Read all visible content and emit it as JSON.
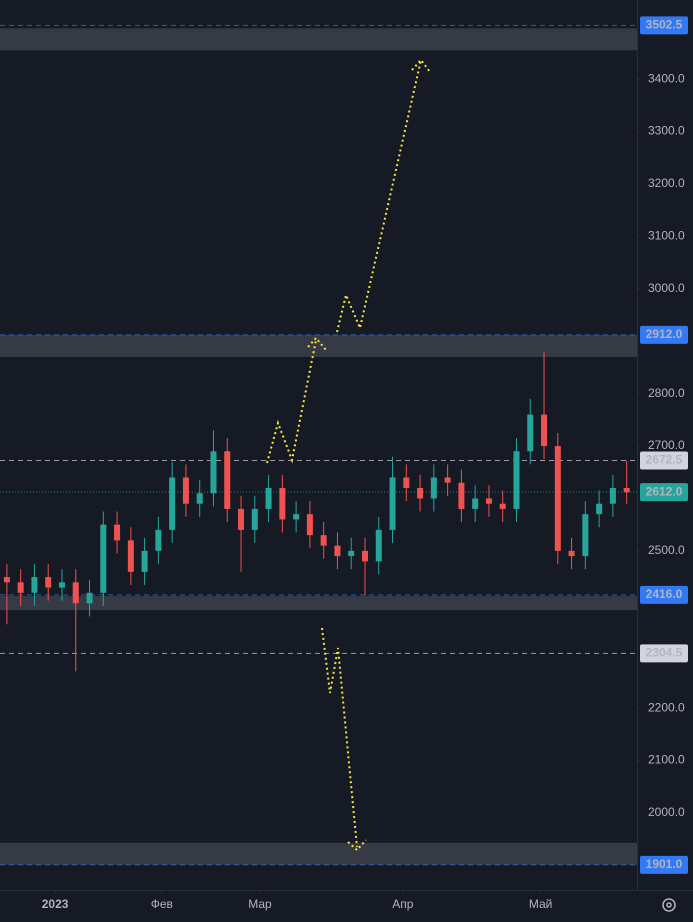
{
  "chart_data": {
    "type": "candlestick",
    "x": [
      0,
      4,
      8,
      12,
      16,
      20,
      24,
      28,
      32,
      36,
      40,
      44,
      48,
      52,
      56,
      60,
      64,
      68,
      72,
      76,
      80,
      84,
      88,
      92,
      96,
      100,
      104,
      108,
      112,
      116,
      120,
      124,
      128,
      132,
      136,
      140,
      144,
      148,
      152,
      156,
      160,
      164,
      168,
      172,
      176,
      180
    ],
    "open": [
      2450,
      2440,
      2420,
      2450,
      2430,
      2440,
      2400,
      2420,
      2550,
      2520,
      2460,
      2500,
      2540,
      2640,
      2590,
      2610,
      2690,
      2580,
      2540,
      2580,
      2620,
      2560,
      2570,
      2530,
      2510,
      2490,
      2500,
      2480,
      2540,
      2640,
      2620,
      2600,
      2640,
      2630,
      2580,
      2600,
      2590,
      2580,
      2690,
      2760,
      2700,
      2500,
      2490,
      2570,
      2590,
      2620
    ],
    "high": [
      2475,
      2465,
      2475,
      2475,
      2465,
      2465,
      2445,
      2575,
      2575,
      2545,
      2525,
      2565,
      2670,
      2665,
      2635,
      2730,
      2715,
      2605,
      2605,
      2645,
      2645,
      2595,
      2595,
      2555,
      2535,
      2525,
      2525,
      2565,
      2680,
      2665,
      2645,
      2665,
      2665,
      2655,
      2625,
      2625,
      2615,
      2715,
      2790,
      2880,
      2725,
      2525,
      2595,
      2615,
      2645,
      2672
    ],
    "low": [
      2360,
      2395,
      2395,
      2405,
      2405,
      2270,
      2375,
      2395,
      2495,
      2435,
      2435,
      2475,
      2515,
      2565,
      2565,
      2585,
      2555,
      2460,
      2515,
      2555,
      2535,
      2535,
      2505,
      2485,
      2465,
      2465,
      2415,
      2455,
      2515,
      2595,
      2575,
      2575,
      2605,
      2555,
      2555,
      2565,
      2555,
      2555,
      2665,
      2675,
      2475,
      2465,
      2465,
      2545,
      2565,
      2590
    ],
    "close": [
      2440,
      2420,
      2450,
      2430,
      2440,
      2400,
      2420,
      2550,
      2520,
      2460,
      2500,
      2540,
      2640,
      2590,
      2610,
      2690,
      2580,
      2540,
      2580,
      2620,
      2560,
      2570,
      2530,
      2510,
      2490,
      2500,
      2480,
      2540,
      2640,
      2620,
      2600,
      2640,
      2630,
      2580,
      2600,
      2590,
      2580,
      2690,
      2760,
      2700,
      2500,
      2490,
      2570,
      2590,
      2620,
      2612
    ],
    "up_color": "#26a69a",
    "down_color": "#ef5350",
    "xlim": [
      -2,
      183
    ],
    "xticks": [
      {
        "value": 14,
        "label": "2023"
      },
      {
        "value": 45,
        "label": "Фев"
      },
      {
        "value": 73.5,
        "label": "Мар"
      },
      {
        "value": 115,
        "label": "Апр"
      },
      {
        "value": 155,
        "label": "Май"
      }
    ],
    "ylim": [
      1853,
      3551
    ],
    "yticks": [
      {
        "value": 2000,
        "label": "2000.0"
      },
      {
        "value": 2100,
        "label": "2100.0"
      },
      {
        "value": 2200,
        "label": "2200.0"
      },
      {
        "value": 2500,
        "label": "2500.0"
      },
      {
        "value": 2700,
        "label": "2700.0"
      },
      {
        "value": 2800,
        "label": "2800.0"
      },
      {
        "value": 3000,
        "label": "3000.0"
      },
      {
        "value": 3100,
        "label": "3100.0"
      },
      {
        "value": 3200,
        "label": "3200.0"
      },
      {
        "value": 3300,
        "label": "3300.0"
      },
      {
        "value": 3400,
        "label": "3400.0"
      }
    ],
    "zones": [
      {
        "low": 3455,
        "high": 3497
      },
      {
        "low": 2870,
        "high": 2912
      },
      {
        "low": 2387,
        "high": 2414
      },
      {
        "low": 1901,
        "high": 1943
      }
    ],
    "price_lines": [
      {
        "value": 3502.5,
        "label": "3502.5",
        "color": "#3179f5",
        "text_color": "#ffffff"
      },
      {
        "value": 2912,
        "label": "2912.0",
        "color": "#3179f5",
        "text_color": "#ffffff"
      },
      {
        "value": 2672.5,
        "label": "2672.5",
        "color": "#d1d4dc",
        "text_color": "#131722"
      },
      {
        "value": 2612,
        "label": "2612.0",
        "color": "#26a69a",
        "text_color": "#ffffff"
      },
      {
        "value": 2416,
        "label": "2416.0",
        "color": "#3179f5",
        "text_color": "#ffffff"
      },
      {
        "value": 2304.5,
        "label": "2304.5",
        "color": "#d1d4dc",
        "text_color": "#131722"
      },
      {
        "value": 1901,
        "label": "1901.0",
        "color": "#3179f5",
        "text_color": "#ffffff"
      }
    ]
  }
}
